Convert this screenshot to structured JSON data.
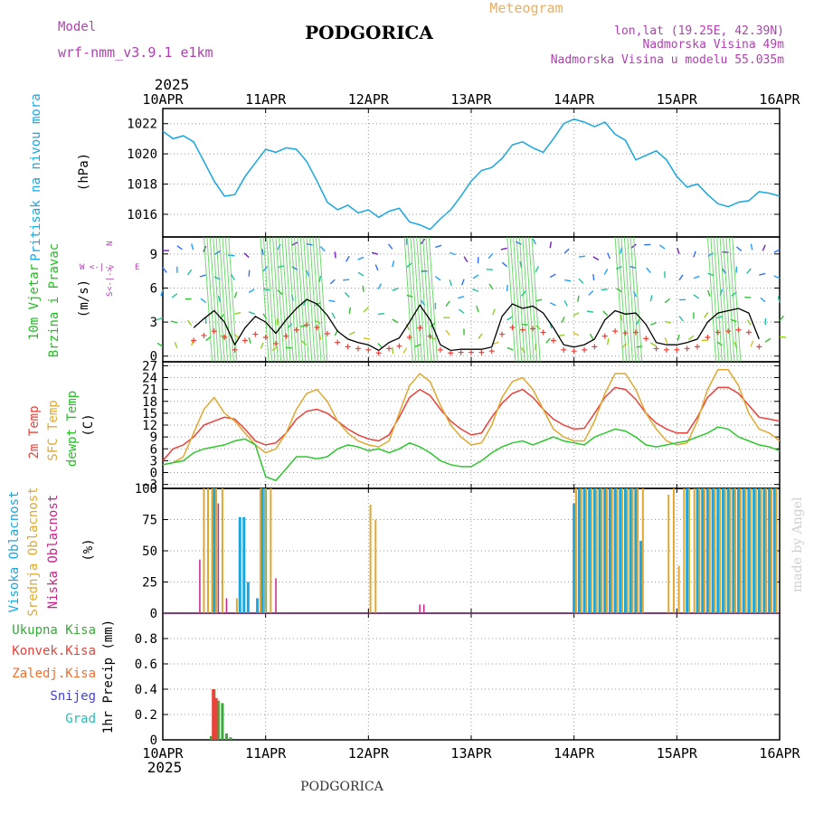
{
  "header": {
    "model_label": "Model",
    "model_name": "wrf-nmm_v3.9.1 e1km",
    "city": "PODGORICA",
    "meteogram_label": "Meteogram",
    "lonlat": "lon,lat (19.25E, 42.39N)",
    "elevation": "Nadmorska Visina 49m",
    "elevation_model": "Nadmorska Visina u modelu 55.035m",
    "footer_city": "PODGORICA",
    "signature": "made by Angel",
    "year_top": "2025",
    "year_bottom": "2025"
  },
  "colors": {
    "pressure": "#1aa7e0",
    "temp2m": "#e8423a",
    "sfc": "#e0a830",
    "dewpt": "#2ec82e",
    "high_cloud": "#1aa7e0",
    "mid_cloud": "#e0a830",
    "low_cloud": "#cc2288",
    "wind_axis_label": "#20c020",
    "wind_black": "#000000",
    "precip_total": "#3aa83a",
    "precip_conv": "#e8423a",
    "legend_zaledj": "#f07030",
    "legend_snijeg": "#4040e0",
    "legend_grad": "#20c0c0",
    "model_text": "#b040b0",
    "meta_text": "#b040b0",
    "meteogram_text": "#e8b060"
  },
  "panel_labels": {
    "pressure": [
      "Pritisak na nivou mora",
      "(hPa)"
    ],
    "wind": [
      "10m Vjetar",
      "Brzina i Pravac",
      "(m/s)"
    ],
    "wind_compass": {
      "w": "W",
      "e": "E",
      "n": "N",
      "s": "S",
      "arrow_h": "<-|->",
      "arrow_v": "<-|->"
    },
    "temp": [
      "2m Temp",
      "SFC Temp",
      "dewpt Temp",
      "(C)"
    ],
    "cloud": [
      "Visoka Oblacnost",
      "Srednja Oblacnost",
      "Niska Oblacnost",
      "(%)"
    ],
    "precip": [
      "1hr Precip (mm)"
    ],
    "precip_legend": [
      "Ukupna Kisa",
      "Konvek.Kisa",
      "Zaledj.Kisa",
      "Snijeg",
      "Grad"
    ]
  },
  "chart_data": [
    {
      "type": "line",
      "panel": "pressure",
      "ylabel": "(hPa)",
      "ylim": [
        1014.5,
        1023.0
      ],
      "yticks": [
        1016,
        1018,
        1020,
        1022
      ],
      "x_unit": "days since 10APR 00UTC",
      "xticks": [
        "10APR",
        "11APR",
        "12APR",
        "13APR",
        "14APR",
        "15APR",
        "16APR"
      ],
      "grid": true,
      "series": [
        {
          "name": "Pritisak na nivou mora",
          "x": [
            0,
            0.1,
            0.2,
            0.3,
            0.4,
            0.5,
            0.6,
            0.7,
            0.8,
            0.9,
            1.0,
            1.1,
            1.2,
            1.3,
            1.4,
            1.5,
            1.6,
            1.7,
            1.8,
            1.9,
            2.0,
            2.1,
            2.2,
            2.3,
            2.4,
            2.5,
            2.6,
            2.7,
            2.8,
            2.9,
            3.0,
            3.1,
            3.2,
            3.3,
            3.4,
            3.5,
            3.6,
            3.7,
            3.8,
            3.9,
            4.0,
            4.1,
            4.2,
            4.3,
            4.4,
            4.5,
            4.6,
            4.7,
            4.8,
            4.9,
            5.0,
            5.1,
            5.2,
            5.3,
            5.4,
            5.5,
            5.6,
            5.7,
            5.8,
            5.9,
            6.0
          ],
          "values": [
            1021.5,
            1021.0,
            1021.2,
            1020.8,
            1019.5,
            1018.2,
            1017.2,
            1017.3,
            1018.5,
            1019.4,
            1020.3,
            1020.1,
            1020.4,
            1020.3,
            1019.5,
            1018.2,
            1016.8,
            1016.3,
            1016.6,
            1016.1,
            1016.3,
            1015.8,
            1016.2,
            1016.4,
            1015.5,
            1015.3,
            1015.0,
            1015.7,
            1016.3,
            1017.2,
            1018.2,
            1018.9,
            1019.1,
            1019.7,
            1020.6,
            1020.8,
            1020.4,
            1020.1,
            1021.0,
            1022.0,
            1022.3,
            1022.1,
            1021.8,
            1022.1,
            1021.3,
            1020.9,
            1019.6,
            1019.9,
            1020.2,
            1019.6,
            1018.5,
            1017.8,
            1018.0,
            1017.3,
            1016.7,
            1016.5,
            1016.8,
            1016.9,
            1017.5,
            1017.4,
            1017.2
          ]
        }
      ]
    },
    {
      "type": "line",
      "panel": "wind",
      "ylabel": "(m/s)",
      "ylim": [
        -0.5,
        10.5
      ],
      "yticks": [
        0,
        3,
        6,
        9
      ],
      "grid": true,
      "series": [
        {
          "name": "wind speed",
          "x": [
            0.3,
            0.4,
            0.5,
            0.6,
            0.7,
            0.8,
            0.9,
            1.0,
            1.1,
            1.2,
            1.3,
            1.4,
            1.5,
            1.6,
            1.7,
            1.8,
            1.9,
            2.0,
            2.1,
            2.2,
            2.3,
            2.4,
            2.5,
            2.6,
            2.7,
            2.8,
            2.9,
            3.0,
            3.1,
            3.2,
            3.3,
            3.4,
            3.5,
            3.6,
            3.7,
            3.8,
            3.9,
            4.0,
            4.1,
            4.2,
            4.3,
            4.4,
            4.5,
            4.6,
            4.7,
            4.8,
            4.9,
            5.0,
            5.1,
            5.2,
            5.3,
            5.4,
            5.5,
            5.6,
            5.7,
            5.8
          ],
          "values": [
            2.5,
            3.3,
            4.0,
            3.0,
            1.0,
            2.5,
            3.5,
            3.0,
            2.0,
            3.2,
            4.2,
            5.0,
            4.6,
            3.6,
            2.2,
            1.5,
            1.2,
            1.0,
            0.5,
            1.2,
            1.6,
            3.0,
            4.5,
            3.2,
            1.0,
            0.5,
            0.6,
            0.6,
            0.6,
            0.8,
            3.5,
            4.6,
            4.2,
            4.4,
            3.8,
            2.5,
            1.0,
            0.8,
            1.0,
            1.5,
            3.2,
            4.0,
            3.7,
            3.8,
            2.8,
            1.2,
            1.0,
            1.0,
            1.2,
            1.5,
            3.0,
            3.8,
            4.0,
            4.2,
            3.8,
            1.5
          ]
        }
      ]
    },
    {
      "type": "line",
      "panel": "temp",
      "ylabel": "(C)",
      "ylim": [
        -4,
        28
      ],
      "yticks": [
        -3,
        0,
        3,
        6,
        9,
        12,
        15,
        18,
        21,
        24,
        27
      ],
      "grid": true,
      "series": [
        {
          "name": "2m Temp",
          "x": [
            0,
            0.1,
            0.2,
            0.3,
            0.4,
            0.5,
            0.6,
            0.7,
            0.8,
            0.9,
            1.0,
            1.1,
            1.2,
            1.3,
            1.4,
            1.5,
            1.6,
            1.7,
            1.8,
            1.9,
            2.0,
            2.1,
            2.2,
            2.3,
            2.4,
            2.5,
            2.6,
            2.7,
            2.8,
            2.9,
            3.0,
            3.1,
            3.2,
            3.3,
            3.4,
            3.5,
            3.6,
            3.7,
            3.8,
            3.9,
            4.0,
            4.1,
            4.2,
            4.3,
            4.4,
            4.5,
            4.6,
            4.7,
            4.8,
            4.9,
            5.0,
            5.1,
            5.2,
            5.3,
            5.4,
            5.5,
            5.6,
            5.7,
            5.8,
            5.9,
            6.0
          ],
          "values": [
            3,
            6,
            7,
            9,
            12,
            13,
            14,
            13.5,
            11,
            8,
            7,
            7.5,
            10,
            13.5,
            15.5,
            16,
            15,
            13,
            11,
            9.5,
            8.5,
            8,
            9.5,
            14,
            19,
            21,
            19.5,
            16,
            13,
            11,
            9.5,
            10,
            14,
            17.5,
            20,
            21,
            19,
            16,
            13.5,
            12,
            11,
            11.2,
            15,
            19,
            21.5,
            21,
            18.5,
            15,
            12.5,
            11,
            10,
            10,
            14,
            19,
            21.5,
            21.5,
            20,
            17,
            14,
            13.5,
            13
          ]
        },
        {
          "name": "SFC Temp",
          "x": [
            0,
            0.1,
            0.2,
            0.3,
            0.4,
            0.5,
            0.6,
            0.7,
            0.8,
            0.9,
            1.0,
            1.1,
            1.2,
            1.3,
            1.4,
            1.5,
            1.6,
            1.7,
            1.8,
            1.9,
            2.0,
            2.1,
            2.2,
            2.3,
            2.4,
            2.5,
            2.6,
            2.7,
            2.8,
            2.9,
            3.0,
            3.1,
            3.2,
            3.3,
            3.4,
            3.5,
            3.6,
            3.7,
            3.8,
            3.9,
            4.0,
            4.1,
            4.2,
            4.3,
            4.4,
            4.5,
            4.6,
            4.7,
            4.8,
            4.9,
            5.0,
            5.1,
            5.2,
            5.3,
            5.4,
            5.5,
            5.6,
            5.7,
            5.8,
            5.9,
            6.0
          ],
          "values": [
            2,
            2.5,
            4,
            10,
            16,
            19,
            15,
            13,
            10,
            7,
            5,
            6,
            10,
            16,
            20,
            21,
            18,
            13,
            10,
            8,
            7,
            6.5,
            8,
            15,
            22,
            25,
            23,
            17,
            12,
            9,
            7,
            7.5,
            12,
            19,
            23,
            24,
            21,
            16,
            11,
            9,
            8,
            8,
            13,
            20,
            25,
            25,
            21,
            15,
            11,
            8,
            7,
            7.5,
            13,
            21,
            26,
            26,
            22,
            15,
            11,
            10,
            8
          ]
        },
        {
          "name": "dewpt Temp",
          "x": [
            0,
            0.1,
            0.2,
            0.3,
            0.4,
            0.5,
            0.6,
            0.7,
            0.8,
            0.9,
            1.0,
            1.1,
            1.2,
            1.3,
            1.4,
            1.5,
            1.6,
            1.7,
            1.8,
            1.9,
            2.0,
            2.1,
            2.2,
            2.3,
            2.4,
            2.5,
            2.6,
            2.7,
            2.8,
            2.9,
            3.0,
            3.1,
            3.2,
            3.3,
            3.4,
            3.5,
            3.6,
            3.7,
            3.8,
            3.9,
            4.0,
            4.1,
            4.2,
            4.3,
            4.4,
            4.5,
            4.6,
            4.7,
            4.8,
            4.9,
            5.0,
            5.1,
            5.2,
            5.3,
            5.4,
            5.5,
            5.6,
            5.7,
            5.8,
            5.9,
            6.0
          ],
          "values": [
            2,
            2.5,
            3,
            5,
            6,
            6.5,
            7,
            8,
            8.5,
            7,
            -1,
            -2,
            1,
            4,
            4,
            3.5,
            4,
            6,
            7,
            6.5,
            5.5,
            6,
            5,
            6,
            7.5,
            6.5,
            5,
            3,
            2,
            1.5,
            1.5,
            3,
            5,
            6.5,
            7.5,
            8,
            7,
            8,
            9,
            8,
            7.5,
            7,
            9,
            10,
            11,
            10.5,
            9,
            7,
            6.5,
            7,
            7.5,
            8,
            9,
            10,
            11.5,
            11,
            9,
            8,
            7,
            6.5,
            5.5
          ]
        }
      ]
    },
    {
      "type": "bar",
      "panel": "cloud",
      "ylabel": "(%)",
      "ylim": [
        0,
        100
      ],
      "yticks": [
        0,
        25,
        50,
        75,
        100
      ],
      "grid": true,
      "series": [
        {
          "name": "Visoka Oblacnost",
          "x": [
            0.5,
            0.75,
            0.79,
            0.83,
            0.92,
            0.97,
            1.0,
            4.0,
            4.05,
            4.1,
            4.15,
            4.2,
            4.25,
            4.3,
            4.35,
            4.4,
            4.45,
            4.5,
            4.55,
            4.6,
            4.65,
            5.1,
            5.2,
            5.25,
            5.3,
            5.35,
            5.4,
            5.45,
            5.5,
            5.55,
            5.6,
            5.65,
            5.7,
            5.75,
            5.8,
            5.85,
            5.9,
            5.95
          ],
          "values": [
            100,
            77,
            77,
            25,
            12,
            100,
            100,
            88,
            100,
            100,
            100,
            100,
            100,
            100,
            100,
            100,
            100,
            100,
            100,
            100,
            58,
            100,
            100,
            100,
            100,
            100,
            100,
            100,
            100,
            100,
            100,
            100,
            100,
            100,
            100,
            100,
            100,
            100
          ]
        },
        {
          "name": "Srednja Oblacnost",
          "x": [
            0.4,
            0.44,
            0.48,
            0.52,
            0.58,
            0.72,
            0.95,
            1.0,
            1.05,
            2.02,
            2.07,
            4.02,
            4.07,
            4.12,
            4.17,
            4.22,
            4.27,
            4.32,
            4.37,
            4.42,
            4.47,
            4.52,
            4.57,
            4.62,
            4.67,
            4.92,
            4.97,
            5.02,
            5.07,
            5.12,
            5.17,
            5.22,
            5.27,
            5.32,
            5.37,
            5.42,
            5.47,
            5.52,
            5.57,
            5.62,
            5.67,
            5.72,
            5.77,
            5.82,
            5.87,
            5.92,
            5.97
          ],
          "values": [
            100,
            100,
            100,
            100,
            100,
            12,
            100,
            100,
            100,
            87,
            75,
            100,
            100,
            100,
            100,
            100,
            100,
            100,
            100,
            100,
            100,
            100,
            100,
            100,
            100,
            95,
            100,
            38,
            100,
            100,
            100,
            100,
            100,
            100,
            100,
            100,
            100,
            100,
            100,
            100,
            100,
            100,
            100,
            100,
            100,
            100,
            100
          ]
        },
        {
          "name": "Niska Oblacnost",
          "x": [
            0.36,
            0.54,
            0.62,
            1.1,
            2.5,
            2.54
          ],
          "values": [
            43,
            88,
            12,
            28,
            7,
            7
          ]
        }
      ]
    },
    {
      "type": "bar",
      "panel": "precip",
      "ylabel": "1hr Precip (mm)",
      "ylim": [
        0,
        1.0
      ],
      "yticks": [
        0,
        0.2,
        0.4,
        0.6,
        0.8
      ],
      "xticks": [
        "10APR",
        "11APR",
        "12APR",
        "13APR",
        "14APR",
        "15APR",
        "16APR"
      ],
      "grid": true,
      "series": [
        {
          "name": "Ukupna Kisa",
          "x": [
            0.47,
            0.5,
            0.54,
            0.58,
            0.62,
            0.66
          ],
          "values": [
            0.03,
            0.4,
            0.31,
            0.29,
            0.05,
            0.02
          ]
        },
        {
          "name": "Konvek.Kisa",
          "x": [
            0.49,
            0.52
          ],
          "values": [
            0.4,
            0.33
          ]
        }
      ]
    }
  ]
}
